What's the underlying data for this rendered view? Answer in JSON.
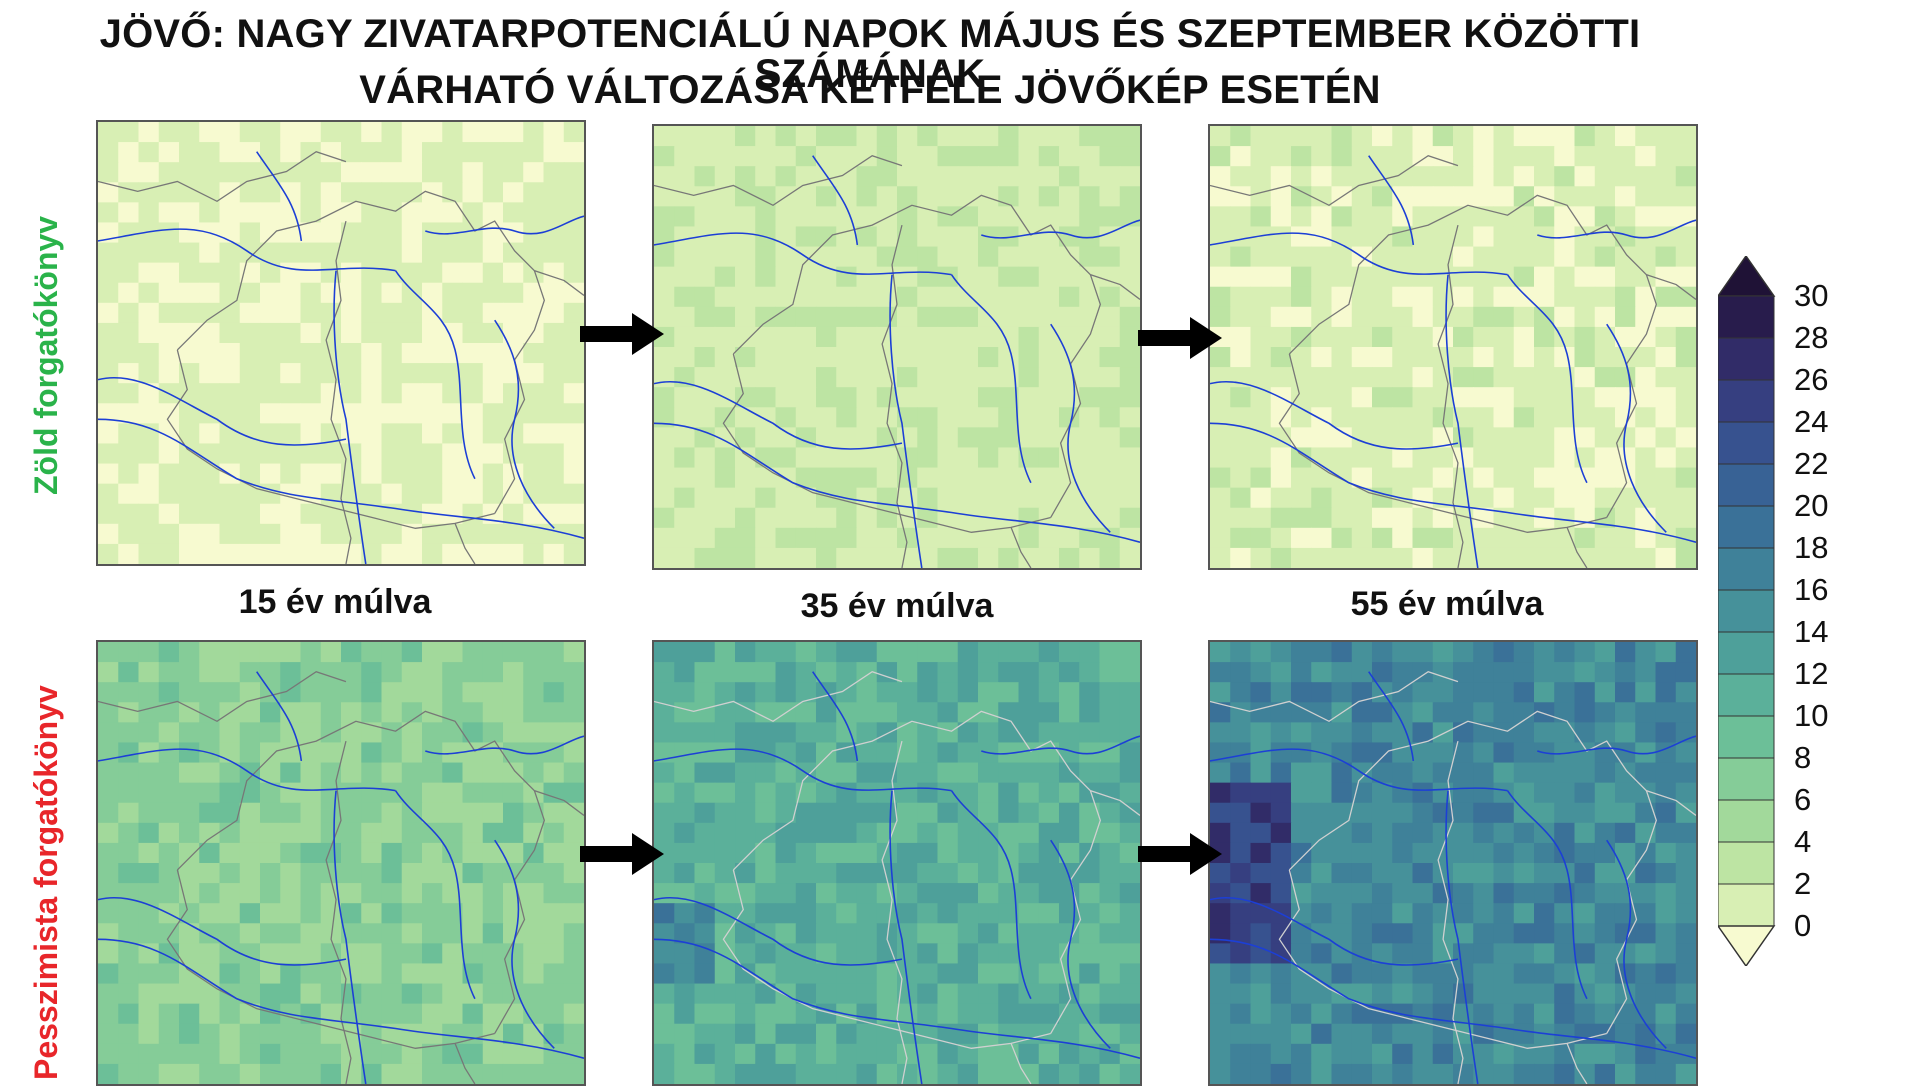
{
  "title_line1": "JÖVŐ: NAGY ZIVATARPOTENCIÁLÚ NAPOK MÁJUS ÉS SZEPTEMBER KÖZÖTTI SZÁMÁNAK",
  "title_line2": "VÁRHATÓ VÁLTOZÁSA KÉTFÉLE JÖVŐKÉP ESETÉN",
  "rows": [
    {
      "label": "Zöld forgatókönyv",
      "color": "#2ab34a"
    },
    {
      "label": "Pesszimista forgatókönyv",
      "color": "#e8262a"
    }
  ],
  "periods": [
    "15 év múlva",
    "35 év múlva",
    "55 év múlva"
  ],
  "panels": [
    {
      "row": 0,
      "col": 0,
      "mean_value": 2.4,
      "spread": 1.6
    },
    {
      "row": 0,
      "col": 1,
      "mean_value": 3.6,
      "spread": 1.4
    },
    {
      "row": 0,
      "col": 2,
      "mean_value": 2.8,
      "spread": 1.6
    },
    {
      "row": 1,
      "col": 0,
      "mean_value": 8.5,
      "spread": 2.0
    },
    {
      "row": 1,
      "col": 1,
      "mean_value": 13.0,
      "spread": 2.4
    },
    {
      "row": 1,
      "col": 2,
      "mean_value": 18.0,
      "spread": 3.0
    }
  ],
  "colorbar": {
    "ticks": [
      "0",
      "2",
      "4",
      "6",
      "8",
      "10",
      "12",
      "14",
      "16",
      "18",
      "20",
      "22",
      "24",
      "26",
      "28",
      "30"
    ],
    "colors": [
      "#f7fad0",
      "#d8efb4",
      "#bde4a3",
      "#a2d99b",
      "#85cc98",
      "#6cbf98",
      "#5bb09a",
      "#4ea09a",
      "#46919a",
      "#3f8199",
      "#3a7198",
      "#386295",
      "#37528f",
      "#363f80",
      "#312c68",
      "#281c4c",
      "#1f1236"
    ],
    "extend": "both"
  },
  "map_colors": {
    "river": "#1c3fd6",
    "border_light": "#777777",
    "border_dark": "#d0d0d0"
  }
}
